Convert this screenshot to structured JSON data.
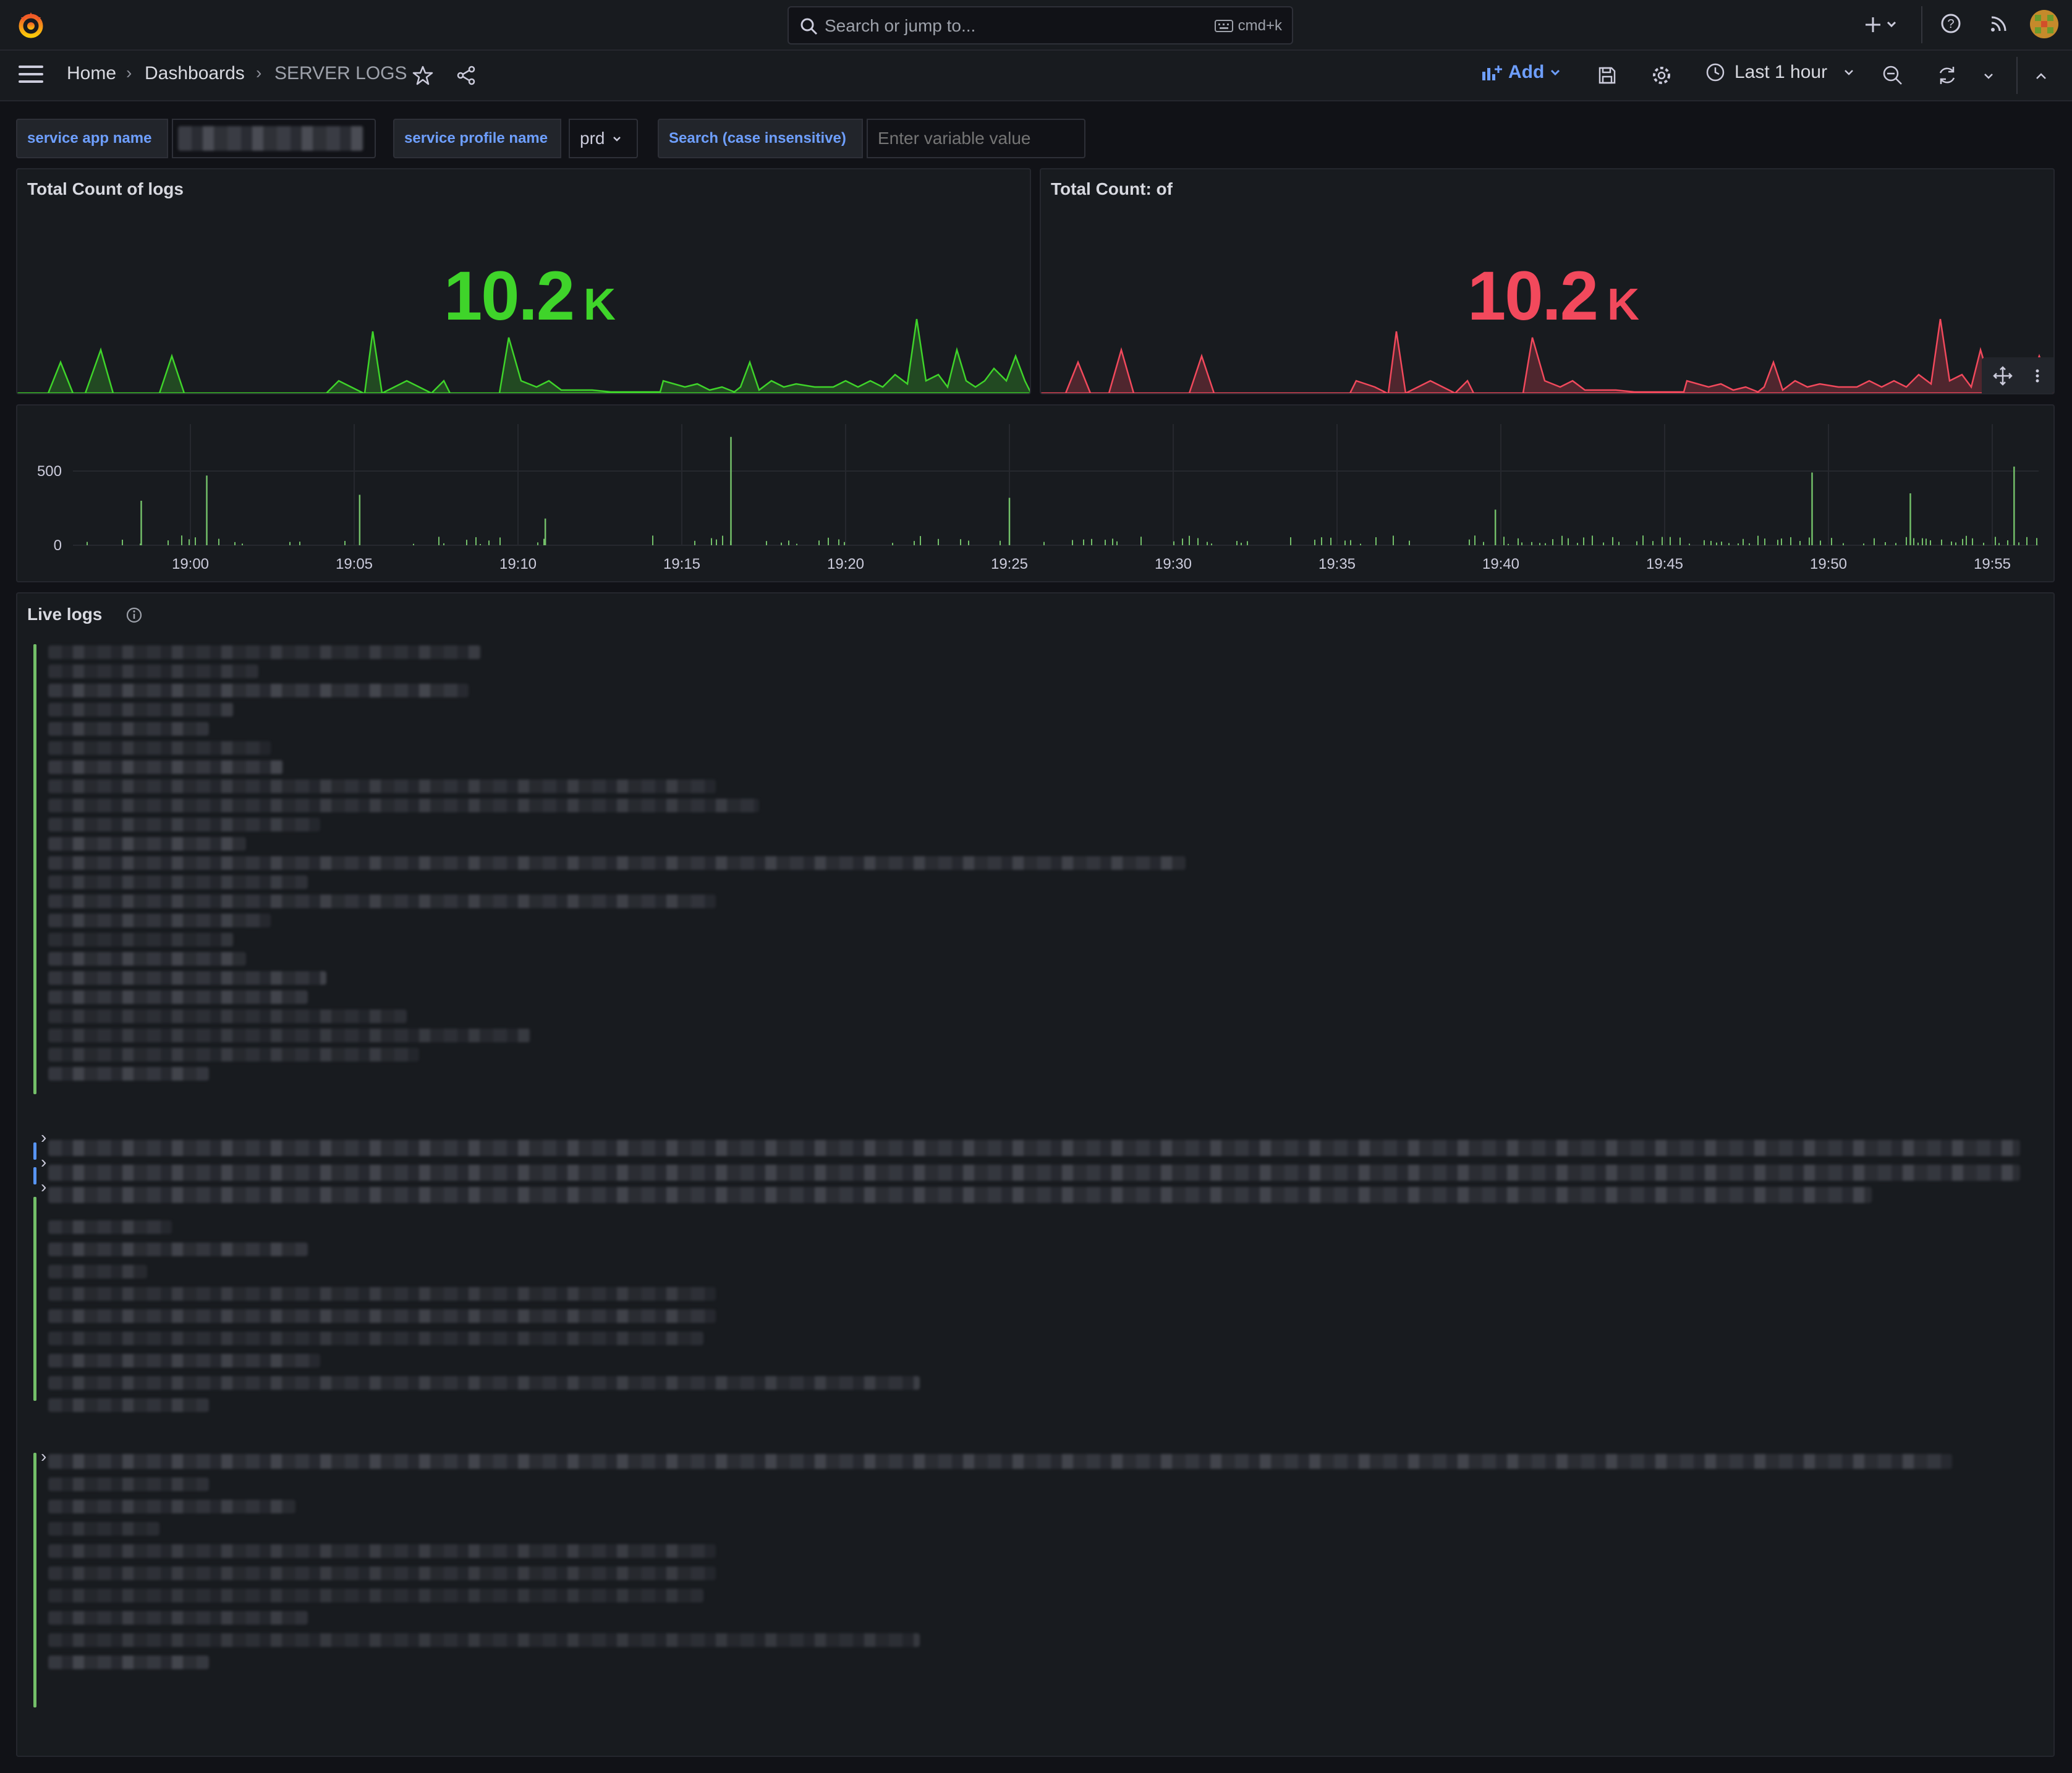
{
  "topbar": {
    "search_placeholder": "Search or jump to...",
    "shortcut": "cmd+k",
    "icons": [
      "grafana-logo-icon",
      "search-icon",
      "keyboard-icon",
      "plus-icon",
      "chevron-down-icon",
      "help-icon",
      "news-icon",
      "avatar"
    ]
  },
  "nav": {
    "breadcrumbs": [
      "Home",
      "Dashboards",
      "SERVER LOGS"
    ],
    "add_label": "Add",
    "time_range": "Last 1 hour"
  },
  "variables": [
    {
      "label": "service app name",
      "value": ""
    },
    {
      "label": "service profile name",
      "value": "prd"
    },
    {
      "label": "Search (case insensitive)",
      "placeholder": "Enter variable value"
    }
  ],
  "stat_panels": [
    {
      "title": "Total Count of logs",
      "value": "10.2",
      "unit": "K",
      "color": "#3fd42a"
    },
    {
      "title": "Total Count: of",
      "value": "10.2",
      "unit": "K",
      "color": "#f2495c"
    }
  ],
  "chart_data": {
    "type": "bar",
    "title": "",
    "x_ticks": [
      "19:00",
      "19:05",
      "19:10",
      "19:15",
      "19:20",
      "19:25",
      "19:30",
      "19:35",
      "19:40",
      "19:45",
      "19:50",
      "19:55"
    ],
    "y_ticks": [
      "0",
      "500"
    ],
    "ylim": [
      0,
      700
    ],
    "spikes": [
      {
        "t": "18:58:30",
        "v": 300
      },
      {
        "t": "19:00:30",
        "v": 470
      },
      {
        "t": "19:05:10",
        "v": 340
      },
      {
        "t": "19:10:50",
        "v": 180
      },
      {
        "t": "19:16:30",
        "v": 730
      },
      {
        "t": "19:25:00",
        "v": 320
      },
      {
        "t": "19:39:50",
        "v": 240
      },
      {
        "t": "19:49:30",
        "v": 490
      },
      {
        "t": "19:52:30",
        "v": 350
      },
      {
        "t": "19:55:40",
        "v": 530
      }
    ],
    "color": "#73bf69"
  },
  "logs_panel": {
    "title": "Live logs"
  }
}
